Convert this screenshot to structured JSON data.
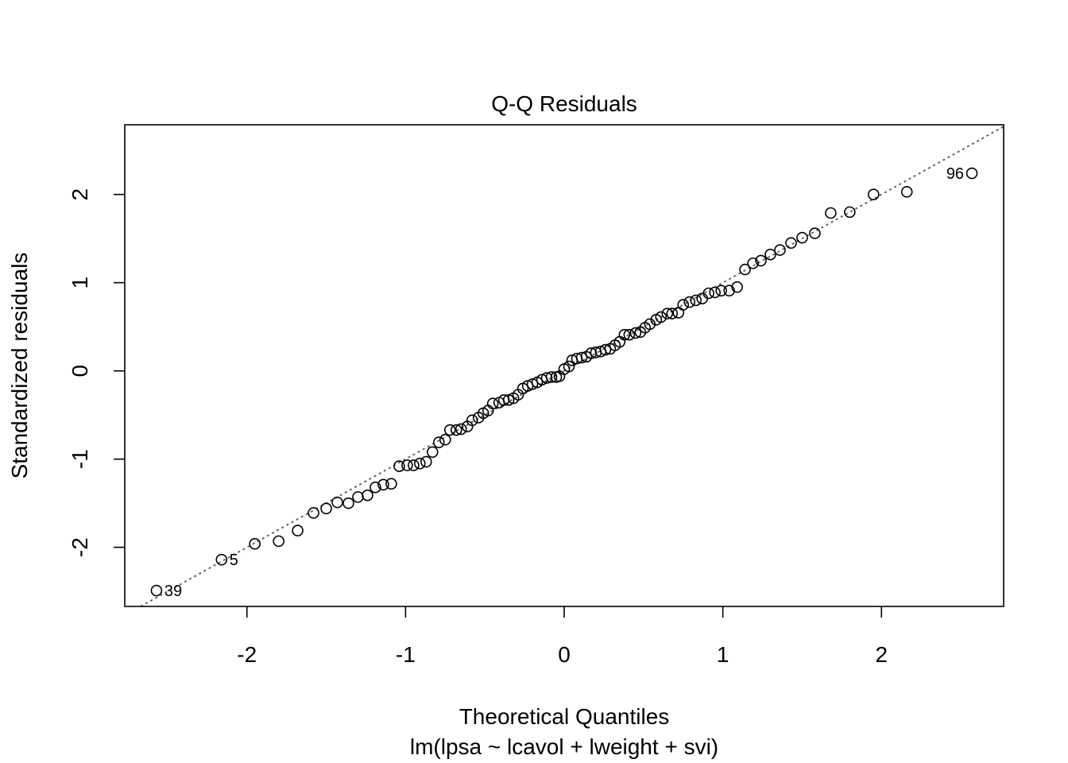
{
  "chart_data": {
    "type": "scatter",
    "title": "Q-Q Residuals",
    "xlabel": "Theoretical Quantiles",
    "xsublabel": "lm(lpsa ~ lcavol + lweight + svi)",
    "ylabel": "Standardized residuals",
    "xlim": [
      -2.77,
      2.77
    ],
    "ylim": [
      -2.67,
      2.79
    ],
    "xticks": [
      -2,
      -1,
      0,
      1,
      2
    ],
    "yticks": [
      -2,
      -1,
      0,
      1,
      2
    ],
    "xtick_labels": [
      "-2",
      "-1",
      "0",
      "1",
      "2"
    ],
    "ytick_labels": [
      "-2",
      "-1",
      "0",
      "1",
      "2"
    ],
    "grid": false,
    "reference_line": {
      "intercept": 0.0,
      "slope": 1.0,
      "style": "dotted",
      "color": "#666666"
    },
    "point_color": "#000000",
    "series": [
      {
        "x": [
          -2.57,
          -2.16,
          -1.95,
          -1.8,
          -1.68,
          -1.58,
          -1.5,
          -1.43,
          -1.36,
          -1.3,
          -1.24,
          -1.19,
          -1.14,
          -1.09,
          -1.04,
          -0.99,
          -0.95,
          -0.91,
          -0.87,
          -0.83,
          -0.79,
          -0.75,
          -0.72,
          -0.68,
          -0.65,
          -0.61,
          -0.58,
          -0.54,
          -0.51,
          -0.48,
          -0.45,
          -0.41,
          -0.38,
          -0.35,
          -0.32,
          -0.29,
          -0.26,
          -0.23,
          -0.2,
          -0.17,
          -0.14,
          -0.11,
          -0.08,
          -0.05,
          -0.03,
          0.0,
          0.03,
          0.05,
          0.08,
          0.11,
          0.14,
          0.17,
          0.2,
          0.23,
          0.26,
          0.29,
          0.32,
          0.35,
          0.38,
          0.41,
          0.45,
          0.48,
          0.51,
          0.54,
          0.58,
          0.61,
          0.65,
          0.68,
          0.72,
          0.75,
          0.79,
          0.83,
          0.87,
          0.91,
          0.95,
          0.99,
          1.04,
          1.09,
          1.14,
          1.19,
          1.24,
          1.3,
          1.36,
          1.43,
          1.5,
          1.58,
          1.68,
          1.8,
          1.95,
          2.16,
          2.57
        ],
        "y": [
          -2.49,
          -2.14,
          -1.96,
          -1.93,
          -1.81,
          -1.61,
          -1.56,
          -1.49,
          -1.5,
          -1.43,
          -1.41,
          -1.32,
          -1.29,
          -1.28,
          -1.08,
          -1.07,
          -1.07,
          -1.05,
          -1.03,
          -0.92,
          -0.81,
          -0.78,
          -0.67,
          -0.67,
          -0.66,
          -0.63,
          -0.56,
          -0.53,
          -0.48,
          -0.45,
          -0.37,
          -0.36,
          -0.33,
          -0.33,
          -0.31,
          -0.27,
          -0.2,
          -0.17,
          -0.15,
          -0.13,
          -0.1,
          -0.08,
          -0.07,
          -0.07,
          -0.06,
          0.02,
          0.05,
          0.12,
          0.14,
          0.15,
          0.16,
          0.2,
          0.21,
          0.22,
          0.24,
          0.25,
          0.29,
          0.33,
          0.41,
          0.41,
          0.43,
          0.44,
          0.49,
          0.53,
          0.58,
          0.61,
          0.65,
          0.65,
          0.66,
          0.75,
          0.78,
          0.8,
          0.82,
          0.88,
          0.89,
          0.91,
          0.91,
          0.95,
          1.15,
          1.22,
          1.25,
          1.32,
          1.37,
          1.45,
          1.51,
          1.56,
          1.79,
          1.8,
          2.0,
          2.03,
          2.24
        ]
      }
    ],
    "point_labels": [
      {
        "text": "39",
        "x": -2.57,
        "y": -2.49,
        "side": "right"
      },
      {
        "text": "5",
        "x": -2.16,
        "y": -2.14,
        "side": "right"
      },
      {
        "text": "96",
        "x": 2.57,
        "y": 2.24,
        "side": "left"
      }
    ]
  }
}
